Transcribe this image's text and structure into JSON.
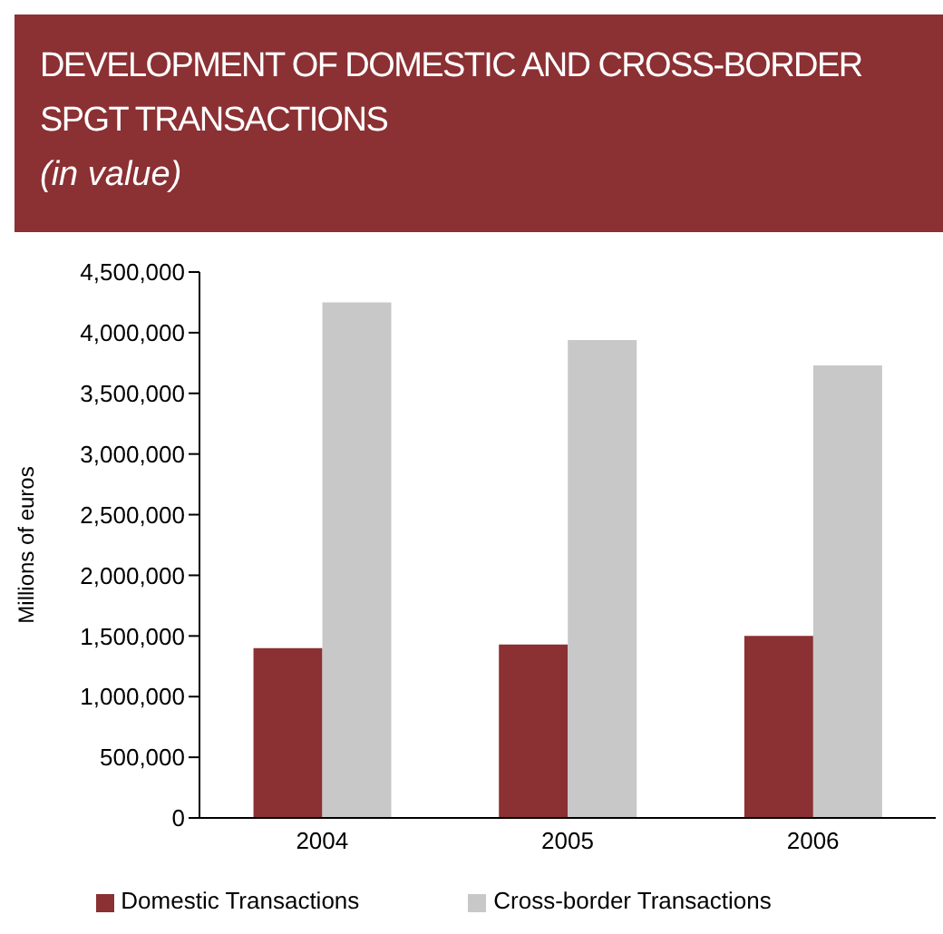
{
  "chart_data": {
    "type": "bar",
    "title": "DEVELOPMENT OF DOMESTIC AND CROSS-BORDER SPGT TRANSACTIONS",
    "subtitle": "(in value)",
    "ylabel": "Millions of euros",
    "categories": [
      "2004",
      "2005",
      "2006"
    ],
    "series": [
      {
        "name": "Domestic Transactions",
        "color": "#8b3033",
        "values": [
          1400000,
          1430000,
          1500000
        ]
      },
      {
        "name": "Cross-border Transactions",
        "color": "#c8c8c8",
        "values": [
          4250000,
          3940000,
          3730000
        ]
      }
    ],
    "ylim": [
      0,
      4500000
    ],
    "yticks": [
      0,
      {
        "value": 500000,
        "label": "500,000"
      },
      {
        "value": 1000000,
        "label": "1,000,000"
      },
      {
        "value": 1500000,
        "label": "1,500,000"
      },
      {
        "value": 2000000,
        "label": "2,000,000"
      },
      {
        "value": 2500000,
        "label": "2,500,000"
      },
      {
        "value": 3000000,
        "label": "3,000,000"
      },
      {
        "value": 3500000,
        "label": "3,500,000"
      },
      {
        "value": 4000000,
        "label": "4,000,000"
      },
      {
        "value": 4500000,
        "label": "4,500,000"
      }
    ],
    "grid": false,
    "legend": "bottom"
  }
}
